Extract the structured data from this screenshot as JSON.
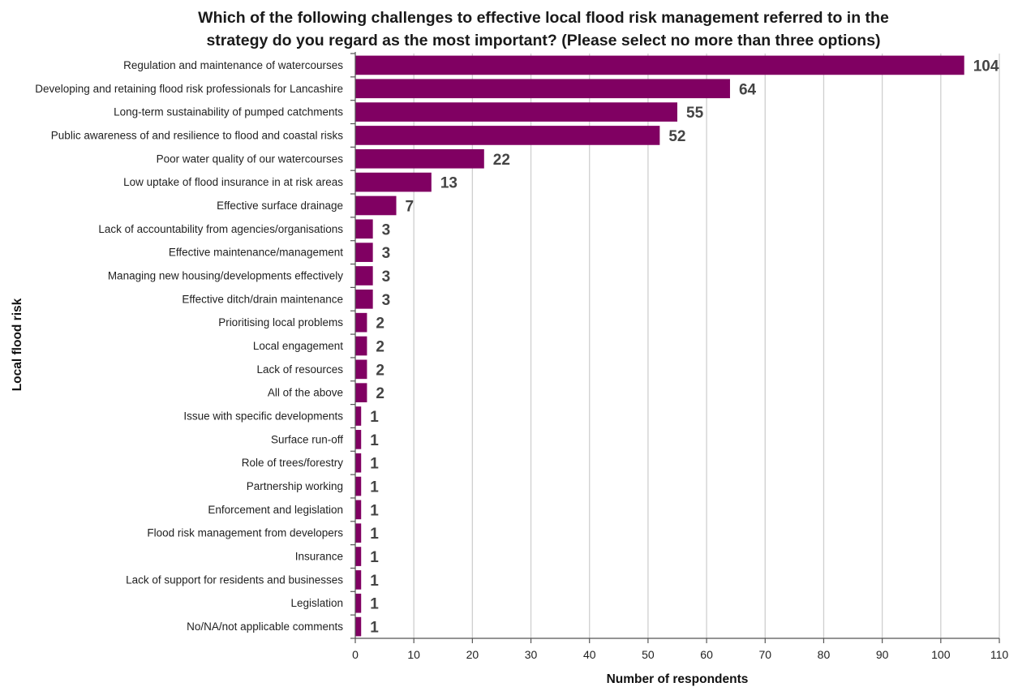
{
  "chart_data": {
    "type": "bar",
    "orientation": "horizontal",
    "title_lines": [
      "Which of the following challenges to effective local flood risk management referred to in the",
      "strategy do you regard as the most important? (Please select no more than three options)"
    ],
    "xlabel": "Number of respondents",
    "ylabel": "Local flood risk",
    "xlim": [
      0,
      110
    ],
    "x_ticks": [
      0,
      10,
      20,
      30,
      40,
      50,
      60,
      70,
      80,
      90,
      100,
      110
    ],
    "grid": "vertical",
    "legend": "none",
    "bar_color": "#800062",
    "categories": [
      "Regulation and maintenance of watercourses",
      "Developing and retaining flood risk professionals for Lancashire",
      "Long-term sustainability of pumped catchments",
      "Public awareness of and resilience to flood and coastal risks",
      "Poor water quality of our watercourses",
      "Low uptake of flood insurance in at risk areas",
      "Effective surface drainage",
      "Lack of accountability from agencies/organisations",
      "Effective maintenance/management",
      "Managing new housing/developments effectively",
      "Effective ditch/drain maintenance",
      "Prioritising local problems",
      "Local engagement",
      "Lack of resources",
      "All of the above",
      "Issue with specific developments",
      "Surface run-off",
      "Role of trees/forestry",
      "Partnership working",
      "Enforcement and legislation",
      "Flood risk management from developers",
      "Insurance",
      "Lack of support for residents and businesses",
      "Legislation",
      "No/NA/not applicable comments"
    ],
    "values": [
      104,
      64,
      55,
      52,
      22,
      13,
      7,
      3,
      3,
      3,
      3,
      2,
      2,
      2,
      2,
      1,
      1,
      1,
      1,
      1,
      1,
      1,
      1,
      1,
      1
    ]
  }
}
